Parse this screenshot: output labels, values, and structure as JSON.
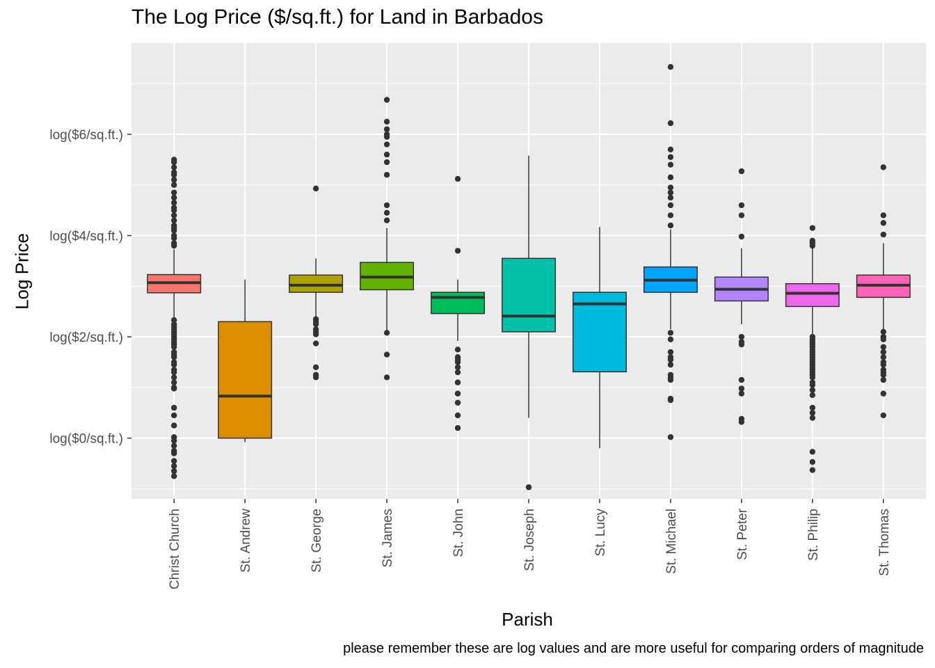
{
  "chart_data": {
    "type": "boxplot",
    "title": "The Log Price ($/sq.ft.) for Land in Barbados",
    "xlabel": "Parish",
    "ylabel": "Log Price",
    "caption": "please remember these are log values and are more useful for comparing orders of magnitude",
    "ylim": [
      -1.2,
      7.8
    ],
    "y_ticks": [
      {
        "value": 0,
        "label": "log($0/sq.ft.)"
      },
      {
        "value": 2,
        "label": "log($2/sq.ft.)"
      },
      {
        "value": 4,
        "label": "log($4/sq.ft.)"
      },
      {
        "value": 6,
        "label": "log($6/sq.ft.)"
      }
    ],
    "grid": true,
    "legend": "none",
    "categories": [
      "Christ Church",
      "St. Andrew",
      "St. George",
      "St. James",
      "St. John",
      "St. Joseph",
      "St. Lucy",
      "St. Michael",
      "St. Peter",
      "St. Philip",
      "St. Thomas"
    ],
    "series": [
      {
        "name": "Christ Church",
        "color": "#F8766D",
        "q1": 2.87,
        "median": 3.07,
        "q3": 3.23,
        "whisker_low": 2.36,
        "whisker_high": 3.73,
        "outliers": [
          5.5,
          5.45,
          5.35,
          5.25,
          5.2,
          5.1,
          5.0,
          4.85,
          4.75,
          4.65,
          4.55,
          4.5,
          4.4,
          4.3,
          4.2,
          4.15,
          4.1,
          4.0,
          3.95,
          3.85,
          3.8,
          2.33,
          2.25,
          2.2,
          2.15,
          2.1,
          2.05,
          2.0,
          1.95,
          1.9,
          1.85,
          1.8,
          1.7,
          1.65,
          1.6,
          1.5,
          1.45,
          1.35,
          1.3,
          1.2,
          1.1,
          1.0,
          0.98,
          0.6,
          0.45,
          0.25,
          0.02,
          -0.05,
          -0.15,
          -0.25,
          -0.3,
          -0.45,
          -0.55,
          -0.65,
          -0.75
        ]
      },
      {
        "name": "St. Andrew",
        "color": "#DB8E00",
        "q1": 0.0,
        "median": 0.83,
        "q3": 2.3,
        "whisker_low": -0.08,
        "whisker_high": 3.13,
        "outliers": []
      },
      {
        "name": "St. George",
        "color": "#AEA200",
        "q1": 2.88,
        "median": 3.02,
        "q3": 3.22,
        "whisker_low": 2.38,
        "whisker_high": 3.55,
        "outliers": [
          4.93,
          2.35,
          2.3,
          2.25,
          2.15,
          2.1,
          2.05,
          1.87,
          1.4,
          1.25,
          1.2
        ]
      },
      {
        "name": "St. James",
        "color": "#64B200",
        "q1": 2.93,
        "median": 3.18,
        "q3": 3.47,
        "whisker_low": 2.1,
        "whisker_high": 4.15,
        "outliers": [
          6.68,
          6.25,
          6.1,
          6.0,
          5.95,
          5.8,
          5.6,
          5.45,
          5.2,
          4.6,
          4.45,
          4.3,
          2.08,
          1.65,
          1.2
        ]
      },
      {
        "name": "St. John",
        "color": "#00BD5C",
        "q1": 2.46,
        "median": 2.78,
        "q3": 2.88,
        "whisker_low": 1.92,
        "whisker_high": 3.13,
        "outliers": [
          5.12,
          3.7,
          1.75,
          1.6,
          1.55,
          1.5,
          1.4,
          1.3,
          1.1,
          0.88,
          0.7,
          0.45,
          0.2
        ]
      },
      {
        "name": "St. Joseph",
        "color": "#00C1A7",
        "q1": 2.1,
        "median": 2.41,
        "q3": 3.55,
        "whisker_low": 0.4,
        "whisker_high": 5.58,
        "outliers": [
          -0.97
        ]
      },
      {
        "name": "St. Lucy",
        "color": "#00BADE",
        "q1": 1.31,
        "median": 2.65,
        "q3": 2.88,
        "whisker_low": -0.2,
        "whisker_high": 4.17,
        "outliers": []
      },
      {
        "name": "St. Michael",
        "color": "#00A6FF",
        "q1": 2.88,
        "median": 3.12,
        "q3": 3.38,
        "whisker_low": 2.15,
        "whisker_high": 4.12,
        "outliers": [
          7.33,
          6.22,
          5.7,
          5.55,
          5.4,
          5.15,
          4.95,
          4.85,
          4.75,
          4.6,
          4.4,
          4.2,
          2.08,
          1.95,
          1.7,
          1.6,
          1.55,
          1.45,
          1.25,
          1.2,
          1.15,
          0.78,
          0.75,
          0.02
        ]
      },
      {
        "name": "St. Peter",
        "color": "#B385FF",
        "q1": 2.71,
        "median": 2.94,
        "q3": 3.18,
        "whisker_low": 2.25,
        "whisker_high": 3.75,
        "outliers": [
          5.27,
          4.6,
          4.4,
          3.98,
          2.0,
          1.9,
          1.85,
          1.15,
          0.98,
          0.88,
          0.38,
          0.32
        ]
      },
      {
        "name": "St. Philip",
        "color": "#EF67EB",
        "q1": 2.6,
        "median": 2.86,
        "q3": 3.05,
        "whisker_low": 2.05,
        "whisker_high": 3.75,
        "outliers": [
          4.15,
          3.9,
          3.85,
          3.8,
          2.0,
          1.95,
          1.9,
          1.85,
          1.8,
          1.75,
          1.7,
          1.65,
          1.6,
          1.55,
          1.5,
          1.45,
          1.4,
          1.35,
          1.3,
          1.25,
          1.2,
          1.1,
          1.05,
          0.95,
          0.85,
          0.6,
          0.5,
          0.4,
          -0.27,
          -0.47,
          -0.63
        ]
      },
      {
        "name": "St. Thomas",
        "color": "#FF63B6",
        "q1": 2.78,
        "median": 3.02,
        "q3": 3.22,
        "whisker_low": 2.12,
        "whisker_high": 3.85,
        "outliers": [
          5.35,
          4.4,
          4.25,
          4.02,
          2.1,
          2.0,
          1.95,
          1.8,
          1.7,
          1.6,
          1.5,
          1.45,
          1.35,
          1.3,
          1.25,
          1.15,
          0.88,
          0.45
        ]
      }
    ]
  }
}
